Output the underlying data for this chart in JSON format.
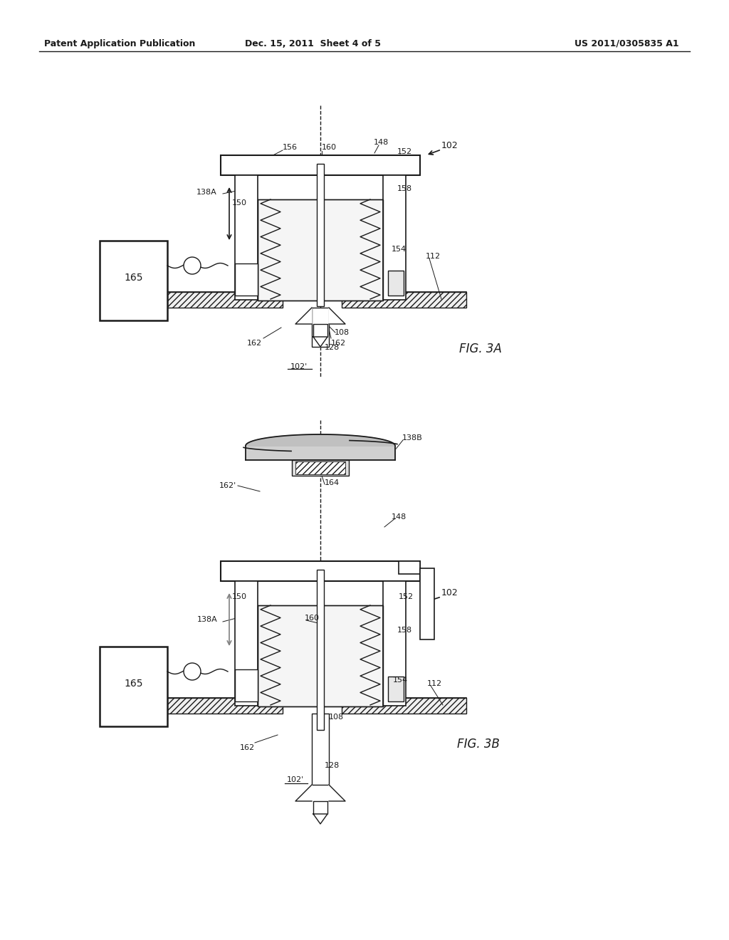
{
  "background_color": "#ffffff",
  "header_left": "Patent Application Publication",
  "header_center": "Dec. 15, 2011  Sheet 4 of 5",
  "header_right": "US 2011/0305835 A1",
  "fig3a_label": "FIG. 3A",
  "fig3b_label": "FIG. 3B",
  "page_width": 10.24,
  "page_height": 13.2
}
